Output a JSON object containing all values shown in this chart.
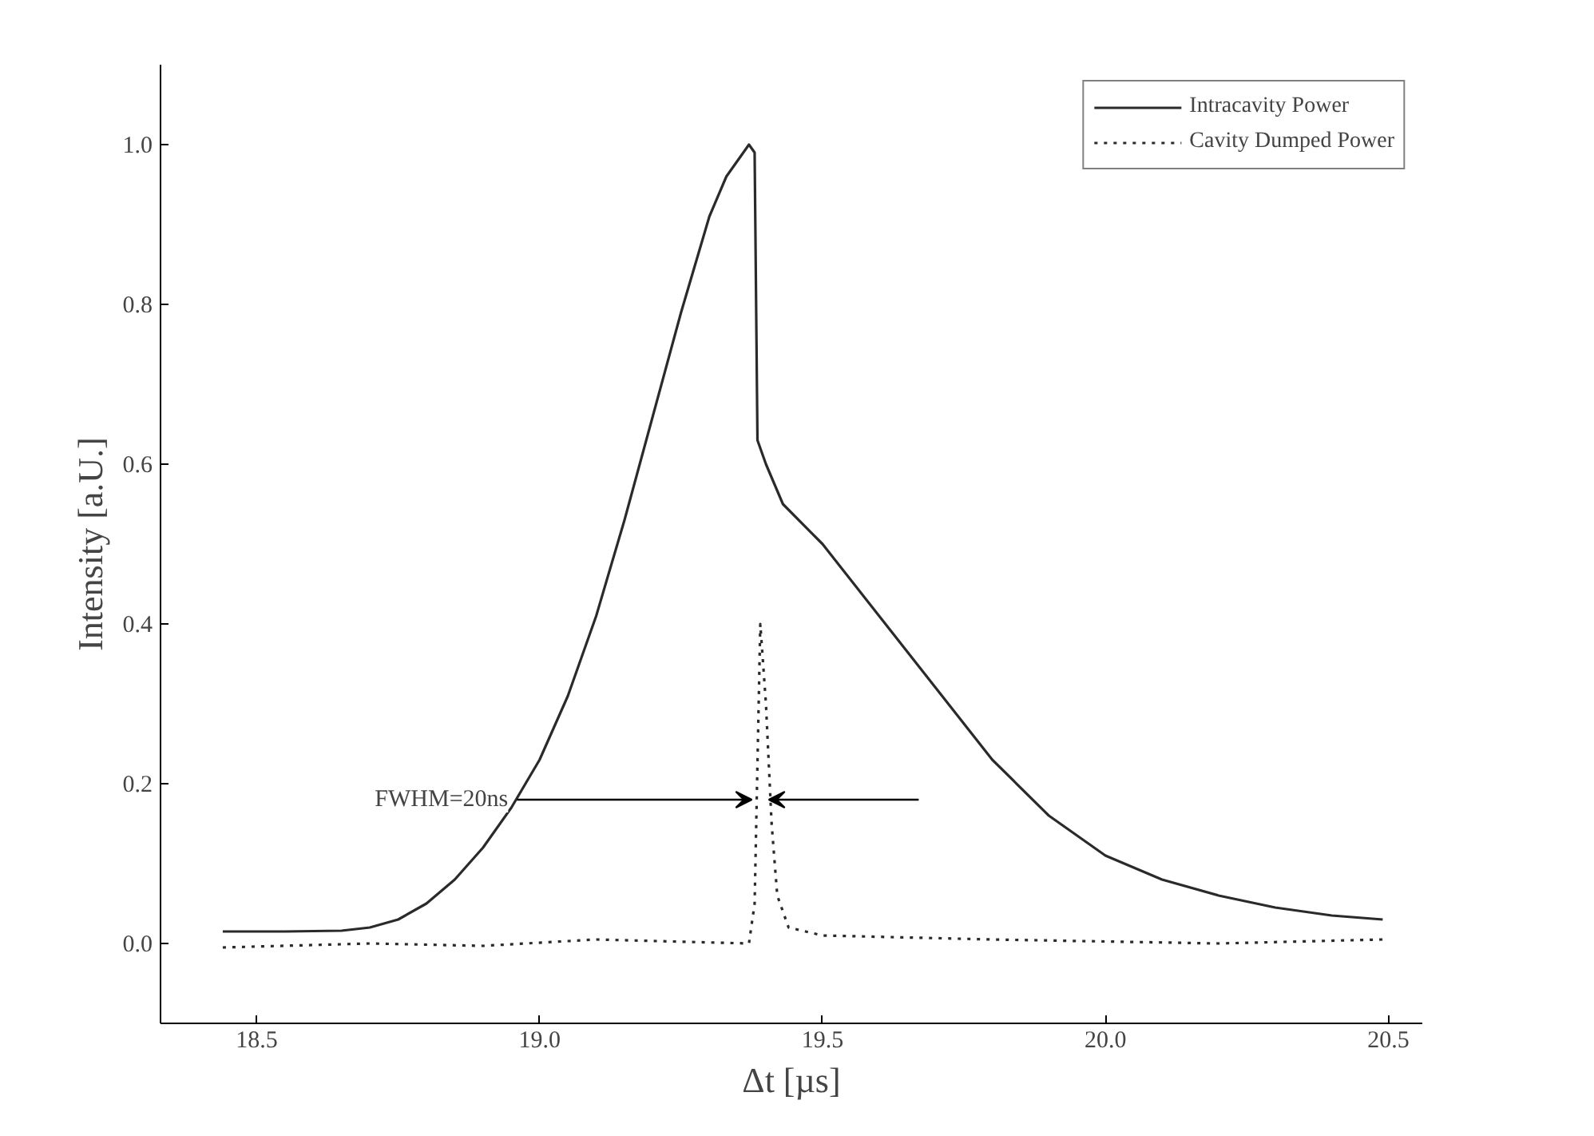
{
  "chart_data": {
    "type": "line",
    "xlabel": "Δt [µs]",
    "ylabel": "Intensity [a.U.]",
    "xlim": [
      18.33,
      20.56
    ],
    "ylim": [
      -0.1,
      1.1
    ],
    "xticks": [
      18.5,
      {
        "value": 19,
        "label": "19.0"
      },
      19.5,
      {
        "value": 20,
        "label": "20.0"
      },
      20.5
    ],
    "yticks": [
      {
        "value": 0,
        "label": "0.0"
      },
      0.2,
      0.4,
      0.6,
      0.8,
      {
        "value": 1,
        "label": "1.0"
      }
    ],
    "grid": false,
    "legend": "top right",
    "marker": "none",
    "series": [
      {
        "name": "Intracavity Power",
        "color": "#2a2a2a",
        "line_style": "solid",
        "x": [
          18.44,
          18.55,
          18.65,
          18.7,
          18.75,
          18.8,
          18.85,
          18.9,
          18.95,
          19.0,
          19.05,
          19.1,
          19.15,
          19.2,
          19.25,
          19.3,
          19.33,
          19.36,
          19.37,
          19.38,
          19.385,
          19.4,
          19.43,
          19.5,
          19.6,
          19.7,
          19.8,
          19.9,
          20.0,
          20.1,
          20.2,
          20.3,
          20.4,
          20.49
        ],
        "values": [
          0.015,
          0.015,
          0.016,
          0.02,
          0.03,
          0.05,
          0.08,
          0.12,
          0.17,
          0.23,
          0.31,
          0.41,
          0.53,
          0.66,
          0.79,
          0.91,
          0.96,
          0.99,
          1.0,
          0.99,
          0.63,
          0.6,
          0.55,
          0.5,
          0.41,
          0.32,
          0.23,
          0.16,
          0.11,
          0.08,
          0.06,
          0.045,
          0.035,
          0.03
        ]
      },
      {
        "name": "Cavity Dumped Power",
        "color": "#2a2a2a",
        "line_style": "dotted",
        "x": [
          18.44,
          18.7,
          18.9,
          19.1,
          19.37,
          19.38,
          19.39,
          19.4,
          19.41,
          19.42,
          19.44,
          19.5,
          19.8,
          20.2,
          20.49
        ],
        "values": [
          -0.005,
          0.0,
          -0.003,
          0.005,
          0.0,
          0.05,
          0.4,
          0.3,
          0.15,
          0.06,
          0.02,
          0.01,
          0.005,
          0.0,
          0.005
        ]
      }
    ],
    "annotations": [
      {
        "text": "FWHM=20ns",
        "x": 18.95,
        "y": 0.18
      }
    ]
  }
}
